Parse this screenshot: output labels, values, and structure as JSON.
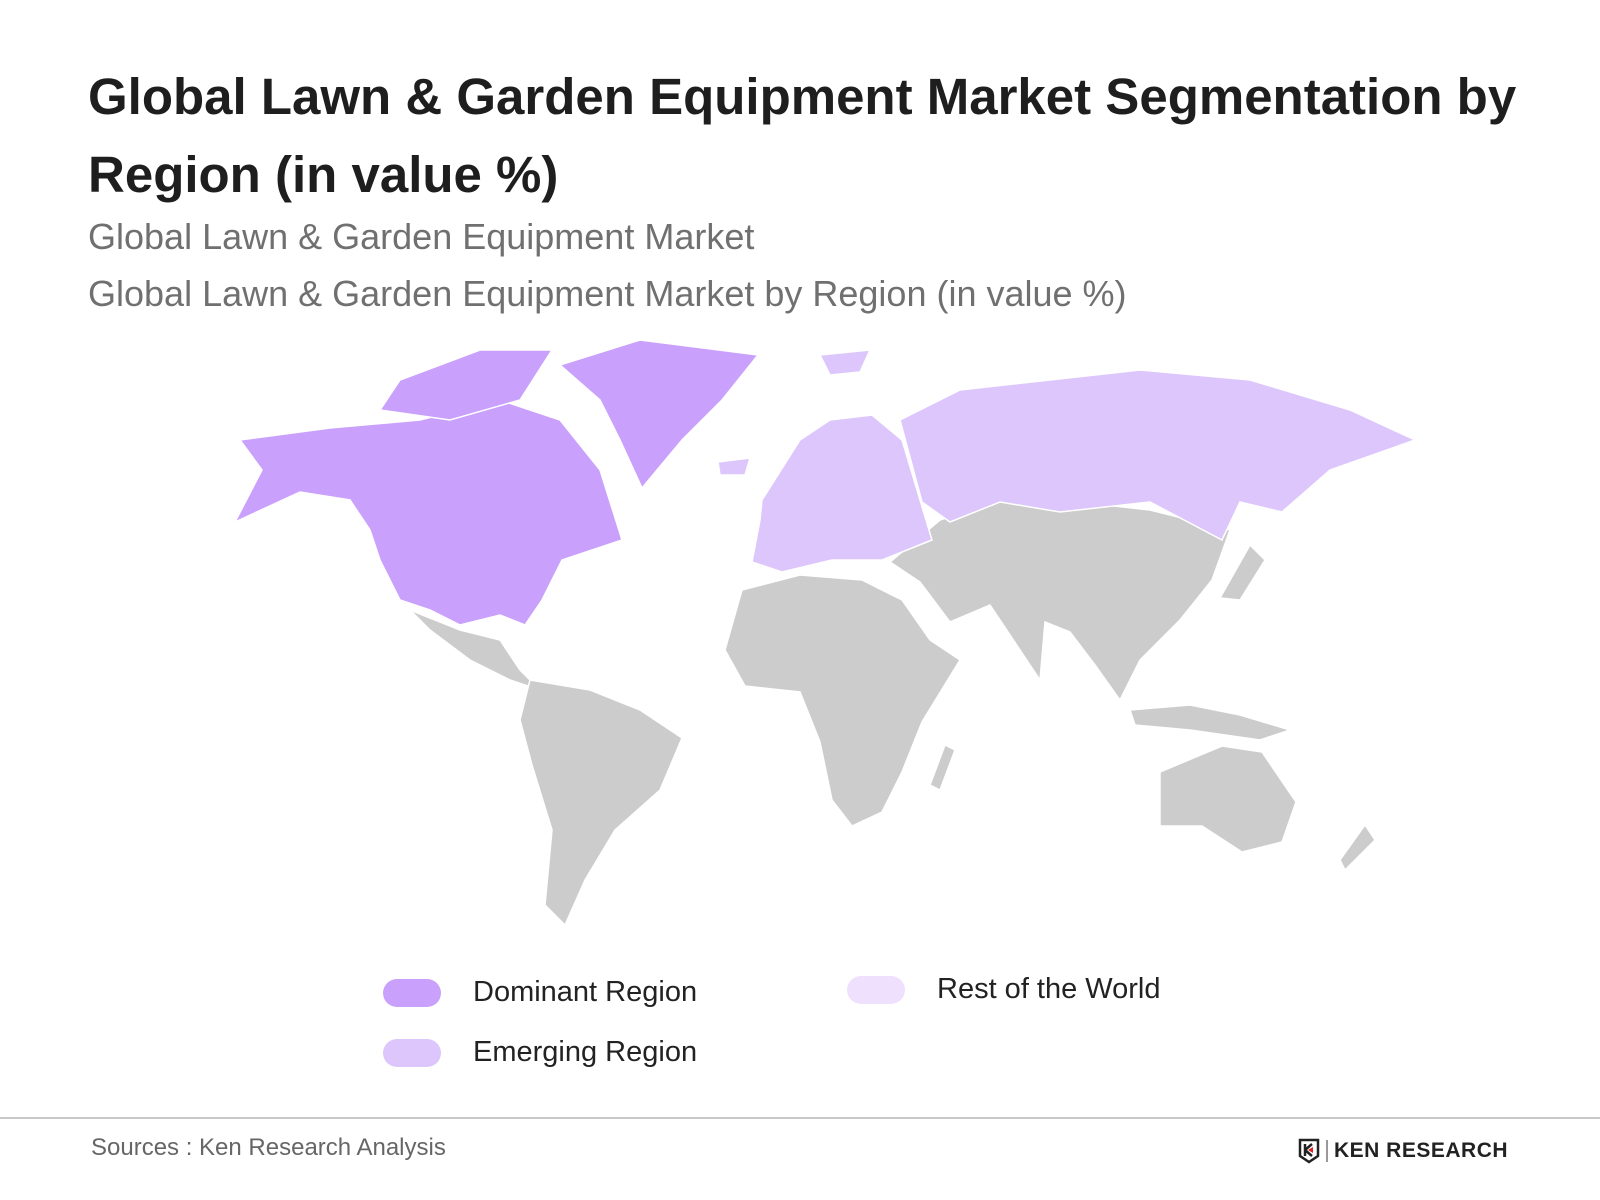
{
  "title": "Global Lawn & Garden Equipment Market Segmentation by Region (in value %)",
  "subtitle_1": "Global Lawn & Garden Equipment Market",
  "subtitle_2": "Global Lawn & Garden Equipment Market by Region (in value %)",
  "map": {
    "regions": [
      {
        "name": "North America",
        "category": "Dominant Region"
      },
      {
        "name": "Greenland",
        "category": "Dominant Region"
      },
      {
        "name": "Europe",
        "category": "Emerging Region"
      },
      {
        "name": "Russia",
        "category": "Emerging Region"
      }
    ],
    "default_color": "#cccccc"
  },
  "legend": [
    {
      "label": "Dominant Region",
      "color": "#c9a0fc"
    },
    {
      "label": "Emerging Region",
      "color": "#dcc6fc"
    },
    {
      "label": "Rest of the World",
      "color": "#efe0fd"
    }
  ],
  "footer": {
    "sources": "Sources : Ken Research Analysis",
    "logo_text": "KEN RESEARCH"
  }
}
